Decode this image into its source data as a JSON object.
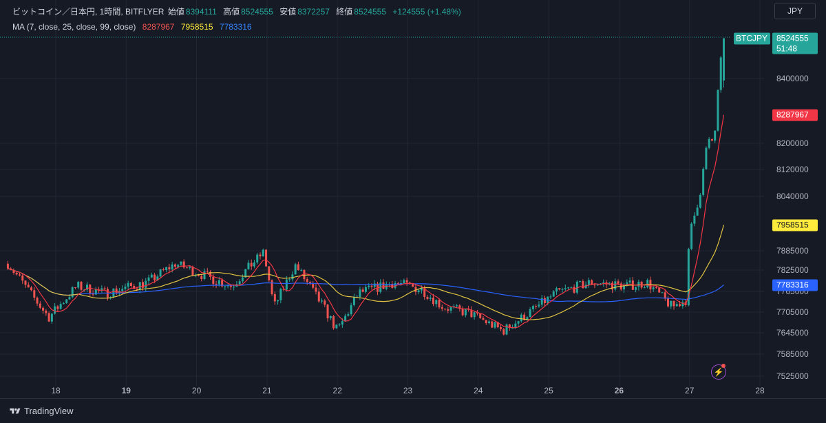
{
  "legend": {
    "symbol_line": "ビットコイン／日本円, 1時間, BITFLYER",
    "open_label": "始値",
    "open": "8394111",
    "high_label": "高値",
    "high": "8524555",
    "low_label": "安値",
    "low": "8372257",
    "close_label": "終値",
    "close": "8524555",
    "change": "+124555 (+1.48%)",
    "ma_line": "MA (7, close, 25, close, 99, close)",
    "ma7": "8287967",
    "ma25": "7958515",
    "ma99": "7783316"
  },
  "currency_button": "JPY",
  "brand": "TradingView",
  "price_tags": {
    "symbol": "BTCJPY",
    "last": "8524555",
    "countdown": "51:48",
    "ma7": "8287967",
    "ma25": "7958515",
    "ma99": "7783316"
  },
  "colors": {
    "up": "#26a69a",
    "down": "#ef5350",
    "ma7": "#f23645",
    "ma25": "#e0c341",
    "ma99": "#2962ff",
    "bg": "#161a25",
    "grid": "#232632"
  },
  "chart_data": {
    "type": "candlestick",
    "title": "",
    "xlabel": "",
    "ylabel": "",
    "x_ticks": [
      "18",
      "19",
      "20",
      "21",
      "22",
      "23",
      "24",
      "25",
      "26",
      "27",
      "28"
    ],
    "x_ticks_bold": [
      "19",
      "26"
    ],
    "y_ticks": [
      8400000,
      8200000,
      8120000,
      8040000,
      7885000,
      7825000,
      7765000,
      7705000,
      7645000,
      7585000,
      7525000
    ],
    "y_tick_labels": [
      "8400000",
      "8200000",
      "8120000",
      "8040000",
      "7885000",
      "7825000",
      "7765000",
      "7705000",
      "7645000",
      "7585000",
      "7525000"
    ],
    "grid": true,
    "approx_price_anchors": [
      {
        "day": 17.3,
        "price": 7850000
      },
      {
        "day": 17.9,
        "price": 7690000
      },
      {
        "day": 18.3,
        "price": 7780000
      },
      {
        "day": 18.7,
        "price": 7760000
      },
      {
        "day": 19.3,
        "price": 7790000
      },
      {
        "day": 19.7,
        "price": 7845000
      },
      {
        "day": 20.1,
        "price": 7810000
      },
      {
        "day": 20.5,
        "price": 7780000
      },
      {
        "day": 20.95,
        "price": 7880000
      },
      {
        "day": 21.1,
        "price": 7720000
      },
      {
        "day": 21.4,
        "price": 7840000
      },
      {
        "day": 21.8,
        "price": 7720000
      },
      {
        "day": 22.0,
        "price": 7650000
      },
      {
        "day": 22.3,
        "price": 7760000
      },
      {
        "day": 22.8,
        "price": 7790000
      },
      {
        "day": 23.2,
        "price": 7770000
      },
      {
        "day": 23.5,
        "price": 7720000
      },
      {
        "day": 23.9,
        "price": 7700000
      },
      {
        "day": 24.35,
        "price": 7650000
      },
      {
        "day": 24.7,
        "price": 7700000
      },
      {
        "day": 25.1,
        "price": 7760000
      },
      {
        "day": 25.6,
        "price": 7790000
      },
      {
        "day": 26.1,
        "price": 7780000
      },
      {
        "day": 26.4,
        "price": 7790000
      },
      {
        "day": 26.75,
        "price": 7720000
      },
      {
        "day": 26.95,
        "price": 7740000
      },
      {
        "day": 27.0,
        "price": 7930000
      },
      {
        "day": 27.15,
        "price": 8050000
      },
      {
        "day": 27.25,
        "price": 8200000
      },
      {
        "day": 27.35,
        "price": 8210000
      },
      {
        "day": 27.42,
        "price": 8400000
      },
      {
        "day": 27.48,
        "price": 8524555
      }
    ],
    "last_candle": {
      "open": 8394111,
      "high": 8524555,
      "low": 8372257,
      "close": 8524555
    },
    "ma_last": {
      "ma7": 8287967,
      "ma25": 7958515,
      "ma99": 7783316
    }
  }
}
